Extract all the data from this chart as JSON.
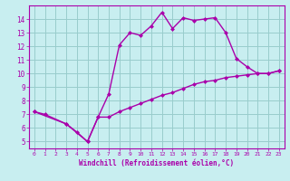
{
  "xlabel": "Windchill (Refroidissement éolien,°C)",
  "bg_color": "#c8eef0",
  "line_color": "#aa00aa",
  "grid_color": "#99cccc",
  "curve1_x": [
    0,
    1,
    3,
    4,
    5,
    6,
    7,
    8,
    9,
    10,
    11,
    12,
    13,
    14,
    15,
    16,
    17,
    18,
    19,
    20,
    21,
    22,
    23
  ],
  "curve1_y": [
    7.2,
    7.0,
    6.3,
    5.7,
    5.0,
    6.8,
    8.5,
    12.1,
    13.0,
    12.8,
    13.5,
    14.5,
    13.3,
    14.1,
    13.9,
    14.0,
    14.1,
    13.0,
    11.1,
    10.5,
    10.0,
    10.0,
    10.2
  ],
  "curve2_x": [
    0,
    3,
    5,
    6,
    7,
    8,
    9,
    10,
    11,
    12,
    13,
    14,
    15,
    16,
    17,
    18,
    19,
    20,
    21,
    22,
    23
  ],
  "curve2_y": [
    7.2,
    6.3,
    5.0,
    6.8,
    6.8,
    7.2,
    7.5,
    7.8,
    8.1,
    8.4,
    8.6,
    8.9,
    9.2,
    9.4,
    9.5,
    9.7,
    9.8,
    9.9,
    10.0,
    10.0,
    10.2
  ],
  "xlim": [
    -0.5,
    23.5
  ],
  "ylim": [
    4.5,
    15.0
  ],
  "xticks": [
    0,
    1,
    2,
    3,
    4,
    5,
    6,
    7,
    8,
    9,
    10,
    11,
    12,
    13,
    14,
    15,
    16,
    17,
    18,
    19,
    20,
    21,
    22,
    23
  ],
  "yticks": [
    5,
    6,
    7,
    8,
    9,
    10,
    11,
    12,
    13,
    14
  ]
}
